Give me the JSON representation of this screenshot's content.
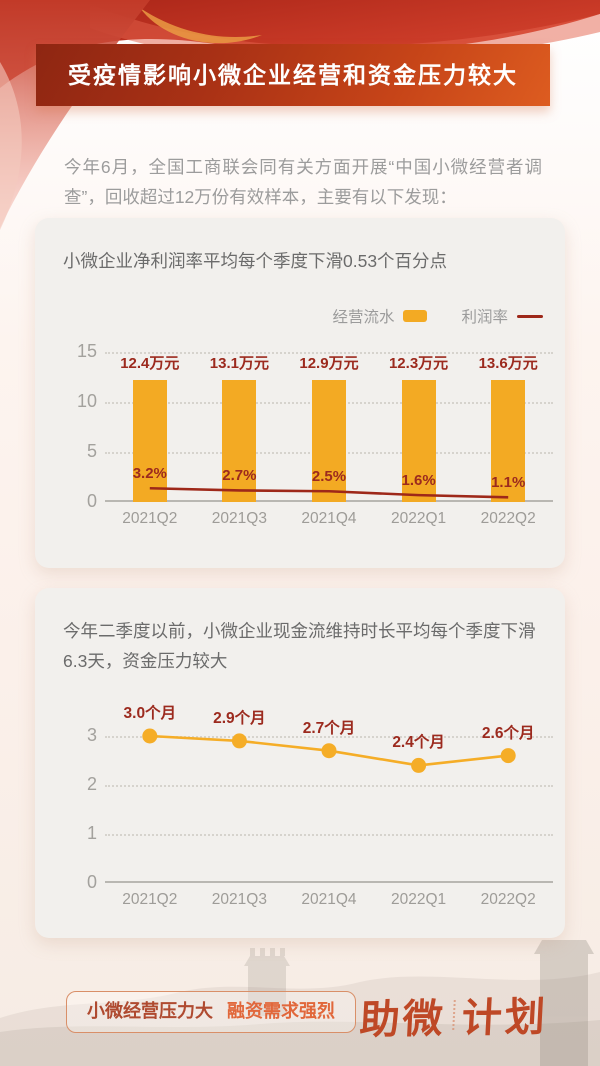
{
  "banner": {
    "title": "受疫情影响小微企业经营和资金压力较大"
  },
  "intro": {
    "text": "今年6月，全国工商联会同有关方面开展“中国小微经营者调查”，回收超过12万份有效样本，主要有以下发现："
  },
  "colors": {
    "banner_gradient_start": "#8e2612",
    "banner_gradient_end": "#dd5c20",
    "bar_yellow": "#F3AA23",
    "line_dark_red": "#9E2819",
    "label_dark_red": "#9C2A1E",
    "line_yellow": "#F5AD27",
    "card_bg": "#f2f0ed",
    "axis_gray": "#a3a19d",
    "badge_border": "#d98f68",
    "badge_text_left": "#AF4A30",
    "badge_text_right": "#E1673B",
    "logo_color": "#BE4826"
  },
  "chart_data": [
    {
      "type": "bar",
      "title": "小微企业净利润率平均每个季度下滑0.53个百分点",
      "categories": [
        "2021Q2",
        "2021Q3",
        "2021Q4",
        "2022Q1",
        "2022Q2"
      ],
      "series": [
        {
          "name": "经营流水",
          "role": "bar",
          "unit": "万元",
          "values": [
            12.4,
            13.1,
            12.9,
            12.3,
            13.6
          ],
          "labels": [
            "12.4万元",
            "13.1万元",
            "12.9万元",
            "12.3万元",
            "13.6万元"
          ],
          "color": "#F3AA23"
        },
        {
          "name": "利润率",
          "role": "line",
          "unit": "%",
          "values": [
            3.2,
            2.7,
            2.5,
            1.6,
            1.1
          ],
          "labels": [
            "3.2%",
            "2.7%",
            "2.5%",
            "1.6%",
            "1.1%"
          ],
          "color": "#9E2819"
        }
      ],
      "ylim": [
        0,
        15
      ],
      "yticks": [
        15,
        10,
        5,
        0
      ],
      "grid": "dotted-horizontal",
      "legend_position": "top-right"
    },
    {
      "type": "line",
      "title": "今年二季度以前，小微企业现金流维持时长平均每个季度下滑6.3天，资金压力较大",
      "categories": [
        "2021Q2",
        "2021Q3",
        "2021Q4",
        "2022Q1",
        "2022Q2"
      ],
      "series": [
        {
          "role": "line",
          "unit": "个月",
          "values": [
            3.0,
            2.9,
            2.7,
            2.4,
            2.6
          ],
          "labels": [
            "3.0个月",
            "2.9个月",
            "2.7个月",
            "2.4个月",
            "2.6个月"
          ],
          "color": "#F5AD27"
        }
      ],
      "ylim": [
        0,
        3.5
      ],
      "yticks": [
        3,
        2,
        1,
        0
      ],
      "grid": "dotted-horizontal",
      "legend_position": "none"
    }
  ],
  "footer": {
    "badge_left": "小微经营压力大",
    "badge_right": "融资需求强烈",
    "logo": "助微计划",
    "logo_part1": "助微",
    "logo_part2": "计划"
  }
}
